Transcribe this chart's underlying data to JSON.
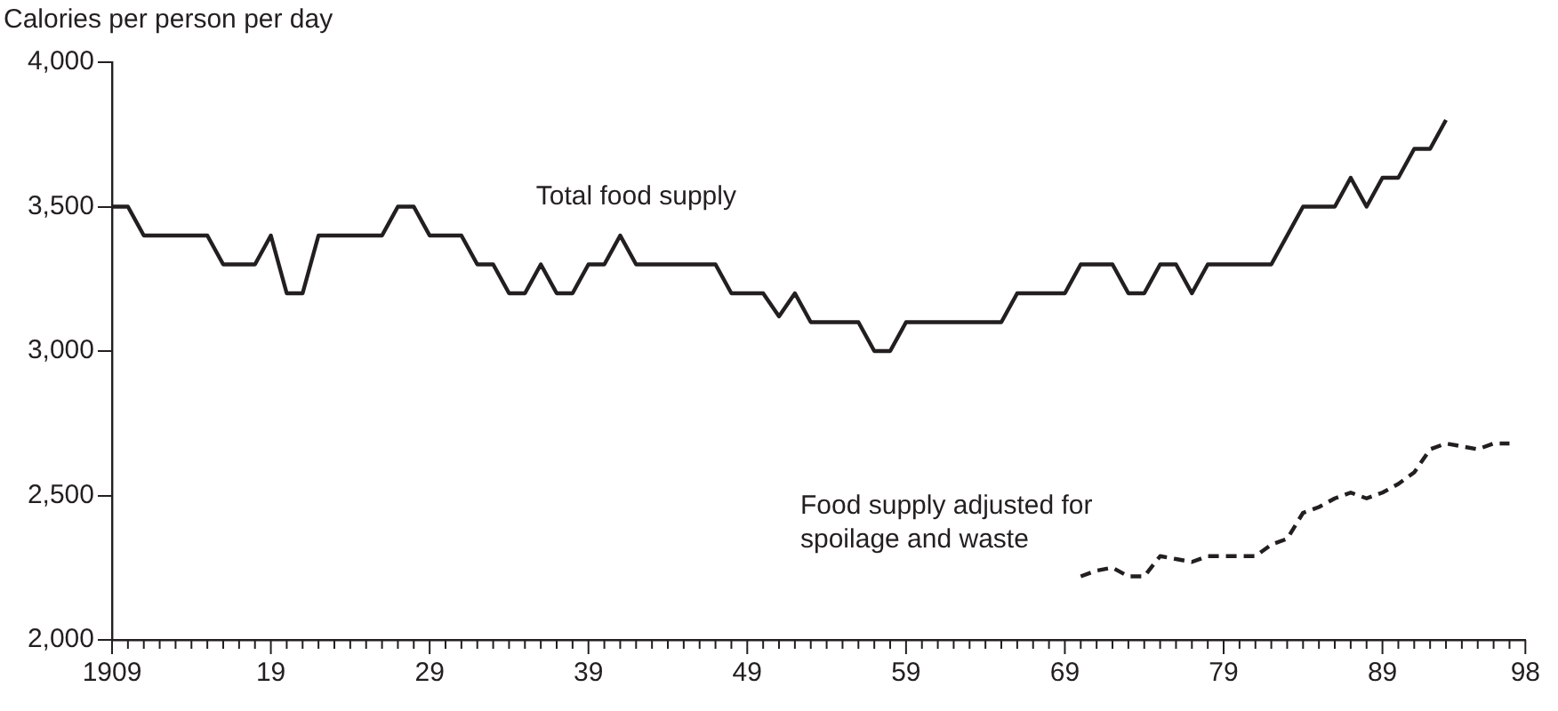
{
  "chart_data": {
    "type": "line",
    "ylabel": "Calories per person per day",
    "xlim": [
      1909,
      1998
    ],
    "ylim": [
      2000,
      4000
    ],
    "xticks": [
      {
        "value": 1909,
        "label": "1909"
      },
      {
        "value": 1910,
        "label": null
      },
      {
        "value": 1911,
        "label": null
      },
      {
        "value": 1912,
        "label": null
      },
      {
        "value": 1913,
        "label": null
      },
      {
        "value": 1914,
        "label": null
      },
      {
        "value": 1915,
        "label": null
      },
      {
        "value": 1916,
        "label": null
      },
      {
        "value": 1917,
        "label": null
      },
      {
        "value": 1918,
        "label": null
      },
      {
        "value": 1919,
        "label": "19"
      },
      {
        "value": 1920,
        "label": null
      },
      {
        "value": 1921,
        "label": null
      },
      {
        "value": 1922,
        "label": null
      },
      {
        "value": 1923,
        "label": null
      },
      {
        "value": 1924,
        "label": null
      },
      {
        "value": 1925,
        "label": null
      },
      {
        "value": 1926,
        "label": null
      },
      {
        "value": 1927,
        "label": null
      },
      {
        "value": 1928,
        "label": null
      },
      {
        "value": 1929,
        "label": "29"
      },
      {
        "value": 1930,
        "label": null
      },
      {
        "value": 1931,
        "label": null
      },
      {
        "value": 1932,
        "label": null
      },
      {
        "value": 1933,
        "label": null
      },
      {
        "value": 1934,
        "label": null
      },
      {
        "value": 1935,
        "label": null
      },
      {
        "value": 1936,
        "label": null
      },
      {
        "value": 1937,
        "label": null
      },
      {
        "value": 1938,
        "label": null
      },
      {
        "value": 1939,
        "label": "39"
      },
      {
        "value": 1940,
        "label": null
      },
      {
        "value": 1941,
        "label": null
      },
      {
        "value": 1942,
        "label": null
      },
      {
        "value": 1943,
        "label": null
      },
      {
        "value": 1944,
        "label": null
      },
      {
        "value": 1945,
        "label": null
      },
      {
        "value": 1946,
        "label": null
      },
      {
        "value": 1947,
        "label": null
      },
      {
        "value": 1948,
        "label": null
      },
      {
        "value": 1949,
        "label": "49"
      },
      {
        "value": 1950,
        "label": null
      },
      {
        "value": 1951,
        "label": null
      },
      {
        "value": 1952,
        "label": null
      },
      {
        "value": 1953,
        "label": null
      },
      {
        "value": 1954,
        "label": null
      },
      {
        "value": 1955,
        "label": null
      },
      {
        "value": 1956,
        "label": null
      },
      {
        "value": 1957,
        "label": null
      },
      {
        "value": 1958,
        "label": null
      },
      {
        "value": 1959,
        "label": "59"
      },
      {
        "value": 1960,
        "label": null
      },
      {
        "value": 1961,
        "label": null
      },
      {
        "value": 1962,
        "label": null
      },
      {
        "value": 1963,
        "label": null
      },
      {
        "value": 1964,
        "label": null
      },
      {
        "value": 1965,
        "label": null
      },
      {
        "value": 1966,
        "label": null
      },
      {
        "value": 1967,
        "label": null
      },
      {
        "value": 1968,
        "label": null
      },
      {
        "value": 1969,
        "label": "69"
      },
      {
        "value": 1970,
        "label": null
      },
      {
        "value": 1971,
        "label": null
      },
      {
        "value": 1972,
        "label": null
      },
      {
        "value": 1973,
        "label": null
      },
      {
        "value": 1974,
        "label": null
      },
      {
        "value": 1975,
        "label": null
      },
      {
        "value": 1976,
        "label": null
      },
      {
        "value": 1977,
        "label": null
      },
      {
        "value": 1978,
        "label": null
      },
      {
        "value": 1979,
        "label": "79"
      },
      {
        "value": 1980,
        "label": null
      },
      {
        "value": 1981,
        "label": null
      },
      {
        "value": 1982,
        "label": null
      },
      {
        "value": 1983,
        "label": null
      },
      {
        "value": 1984,
        "label": null
      },
      {
        "value": 1985,
        "label": null
      },
      {
        "value": 1986,
        "label": null
      },
      {
        "value": 1987,
        "label": null
      },
      {
        "value": 1988,
        "label": null
      },
      {
        "value": 1989,
        "label": "89"
      },
      {
        "value": 1990,
        "label": null
      },
      {
        "value": 1991,
        "label": null
      },
      {
        "value": 1992,
        "label": null
      },
      {
        "value": 1993,
        "label": null
      },
      {
        "value": 1994,
        "label": null
      },
      {
        "value": 1995,
        "label": null
      },
      {
        "value": 1996,
        "label": null
      },
      {
        "value": 1997,
        "label": null
      },
      {
        "value": 1998,
        "label": "98"
      }
    ],
    "yticks": [
      {
        "value": 2000,
        "label": "2,000"
      },
      {
        "value": 2500,
        "label": "2,500"
      },
      {
        "value": 3000,
        "label": "3,000"
      },
      {
        "value": 3500,
        "label": "3,500"
      },
      {
        "value": 4000,
        "label": "4,000"
      }
    ],
    "grid": false,
    "legend": false,
    "marker": "none",
    "series": [
      {
        "name": "Total food supply",
        "color": "#231f20",
        "line_style": "solid",
        "x": [
          1909,
          1910,
          1911,
          1912,
          1913,
          1914,
          1915,
          1916,
          1917,
          1918,
          1919,
          1920,
          1921,
          1922,
          1923,
          1924,
          1925,
          1926,
          1927,
          1928,
          1929,
          1930,
          1931,
          1932,
          1933,
          1934,
          1935,
          1936,
          1937,
          1938,
          1939,
          1940,
          1941,
          1942,
          1943,
          1944,
          1945,
          1946,
          1947,
          1948,
          1949,
          1950,
          1951,
          1952,
          1953,
          1954,
          1955,
          1956,
          1957,
          1958,
          1959,
          1960,
          1961,
          1962,
          1963,
          1964,
          1965,
          1966,
          1967,
          1968,
          1969,
          1970,
          1971,
          1972,
          1973,
          1974,
          1975,
          1976,
          1977,
          1978,
          1979,
          1980,
          1981,
          1982,
          1983,
          1984,
          1985,
          1986,
          1987,
          1988,
          1989,
          1990,
          1991,
          1992,
          1993
        ],
        "values": [
          3500,
          3500,
          3400,
          3400,
          3400,
          3400,
          3400,
          3300,
          3300,
          3300,
          3400,
          3200,
          3200,
          3400,
          3400,
          3400,
          3400,
          3400,
          3500,
          3500,
          3400,
          3400,
          3400,
          3300,
          3300,
          3200,
          3200,
          3300,
          3200,
          3200,
          3300,
          3300,
          3400,
          3300,
          3300,
          3300,
          3300,
          3300,
          3300,
          3200,
          3200,
          3200,
          3120,
          3200,
          3100,
          3100,
          3100,
          3100,
          3000,
          3000,
          3100,
          3100,
          3100,
          3100,
          3100,
          3100,
          3100,
          3200,
          3200,
          3200,
          3200,
          3300,
          3300,
          3300,
          3200,
          3200,
          3300,
          3300,
          3200,
          3300,
          3300,
          3300,
          3300,
          3300,
          3400,
          3500,
          3500,
          3500,
          3600,
          3500,
          3600,
          3600,
          3700,
          3700,
          3800
        ]
      },
      {
        "name": "Food supply adjusted for\nspoilage and waste",
        "color": "#231f20",
        "line_style": "dashed",
        "x": [
          1970,
          1971,
          1972,
          1973,
          1974,
          1975,
          1976,
          1977,
          1978,
          1979,
          1980,
          1981,
          1982,
          1983,
          1984,
          1985,
          1986,
          1987,
          1988,
          1989,
          1990,
          1991,
          1992,
          1993,
          1994,
          1995,
          1996,
          1997
        ],
        "values": [
          2220,
          2240,
          2250,
          2220,
          2220,
          2290,
          2280,
          2270,
          2290,
          2290,
          2290,
          2290,
          2330,
          2350,
          2440,
          2460,
          2490,
          2510,
          2490,
          2510,
          2540,
          2580,
          2660,
          2680,
          2670,
          2660,
          2680,
          2680
        ]
      }
    ]
  }
}
